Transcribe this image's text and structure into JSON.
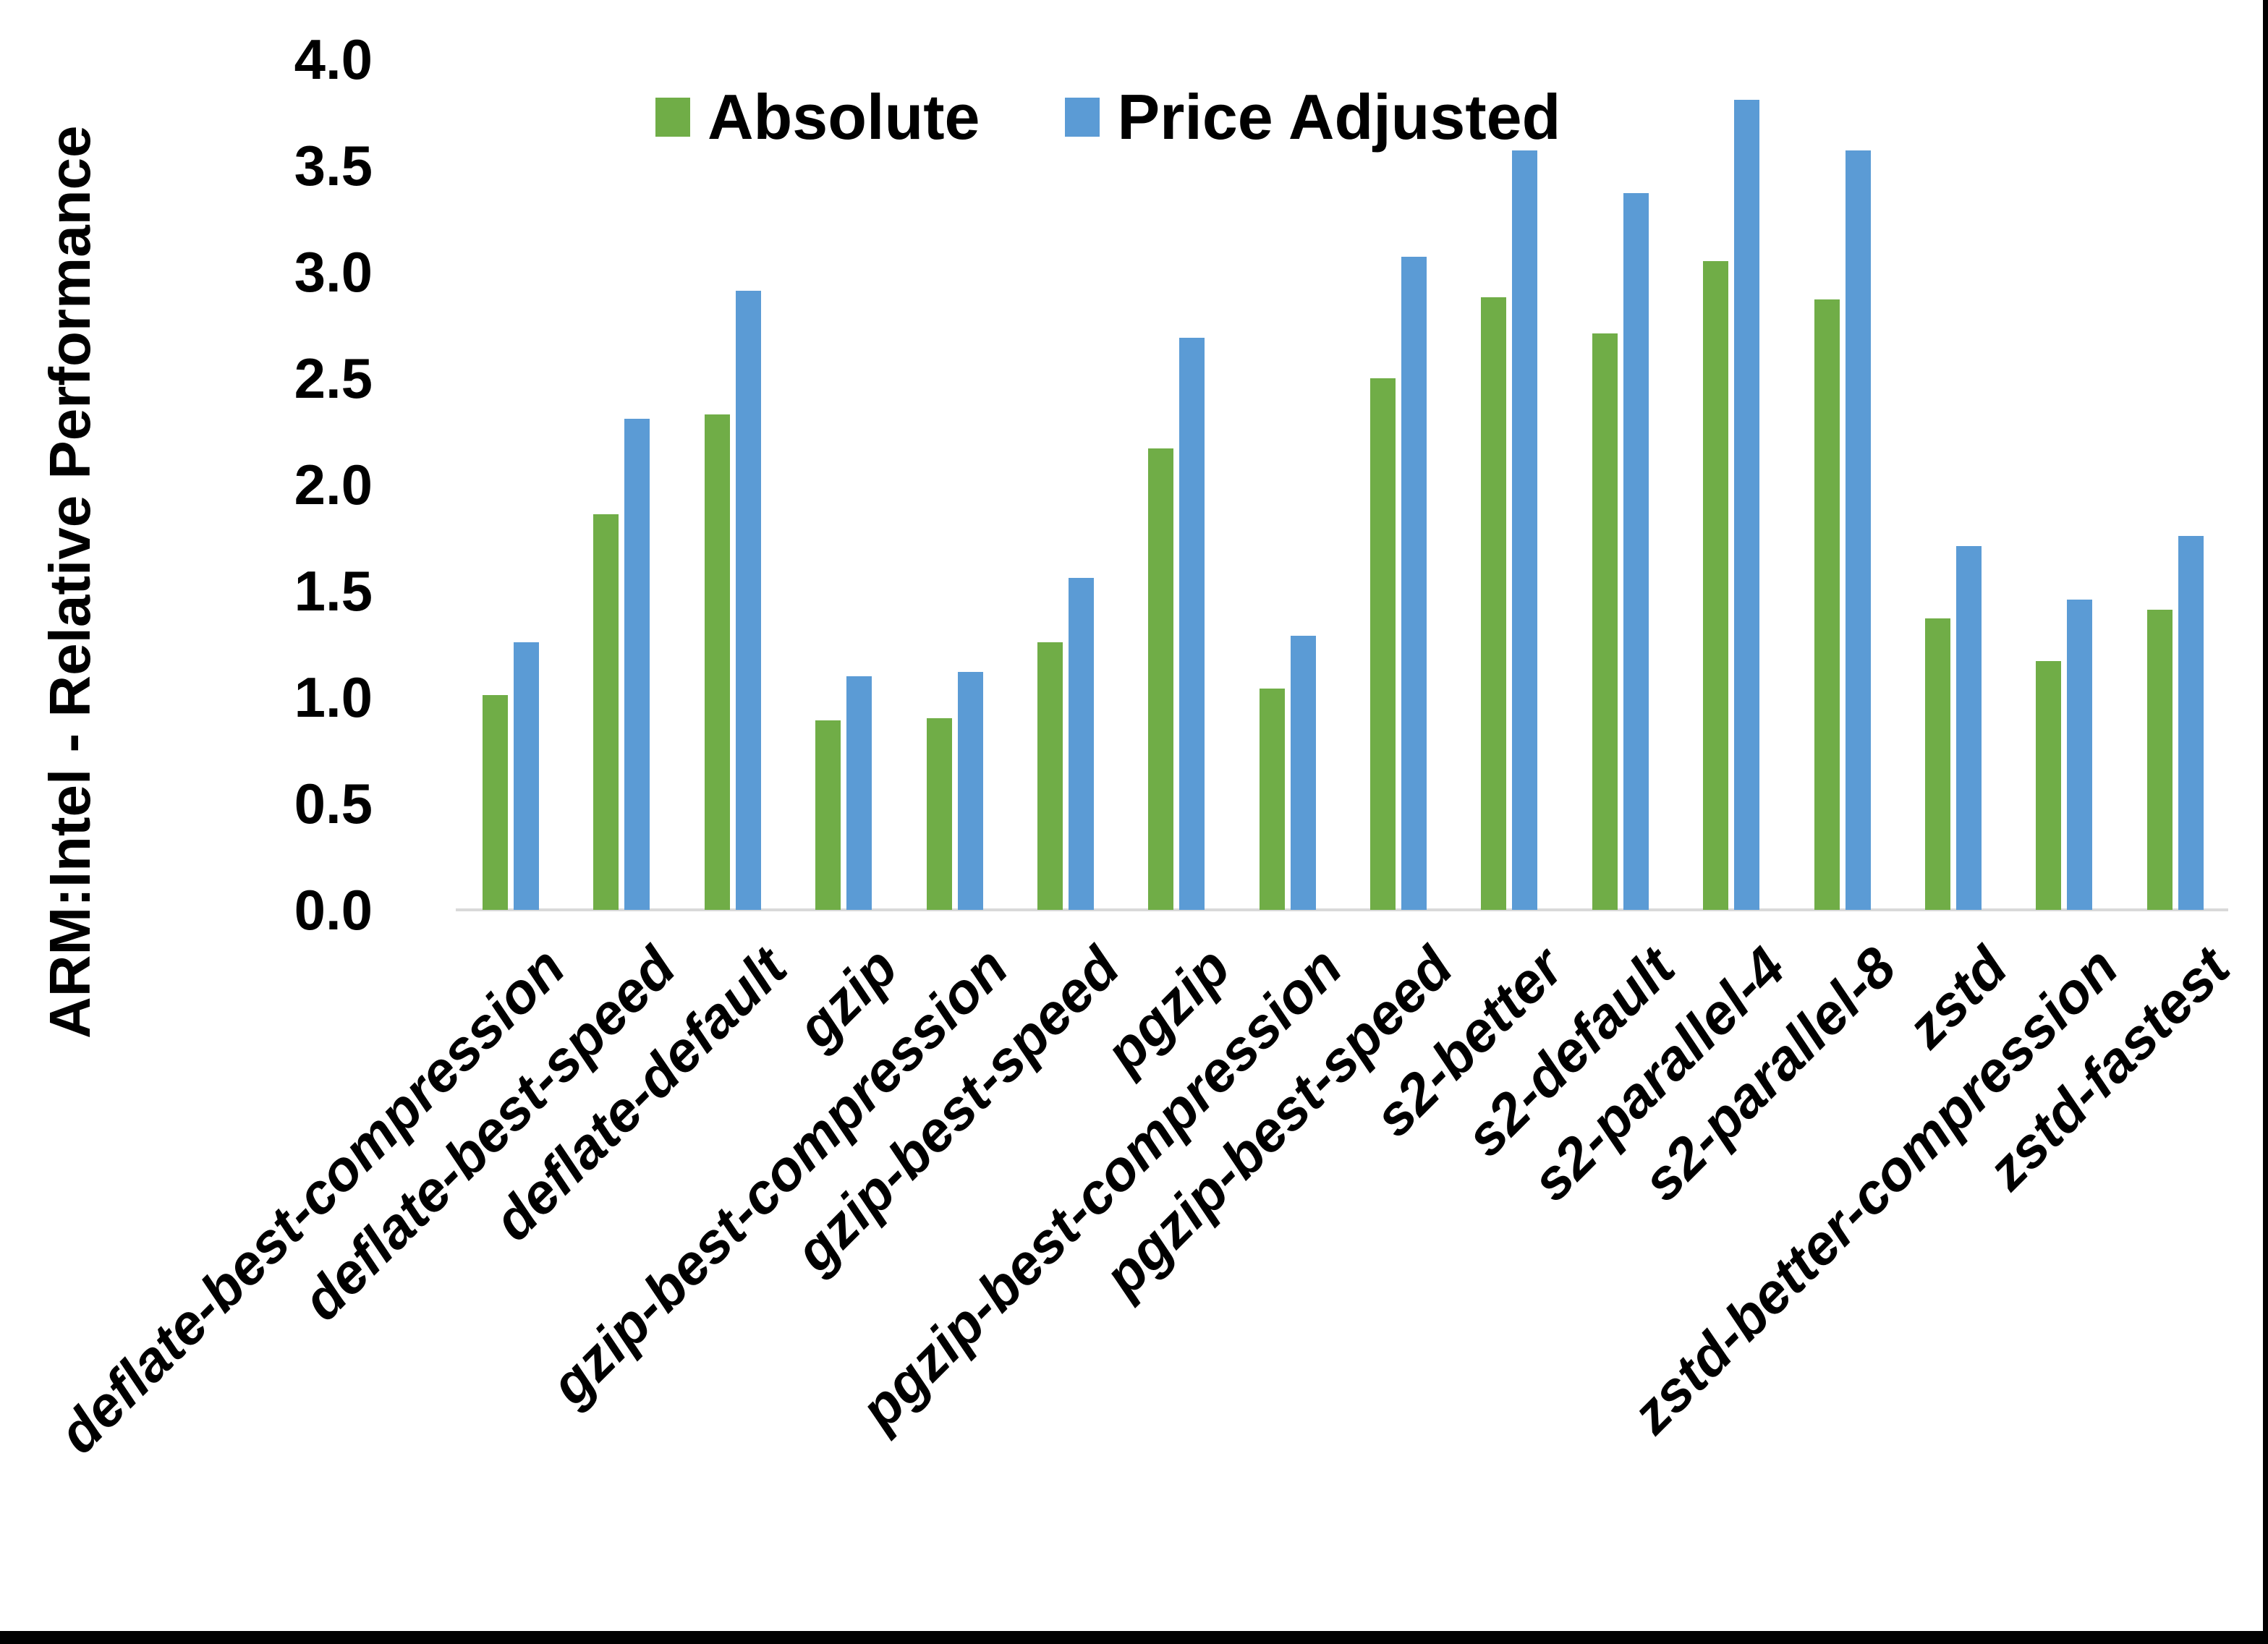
{
  "page": {
    "background": "#ffffff",
    "border_color": "#000000"
  },
  "chart_data": {
    "type": "bar",
    "title": "",
    "categories": [
      "deflate-best-compression",
      "deflate-best-speed",
      "deflate-default",
      "gzip",
      "gzip-best-compression",
      "gzip-best-speed",
      "pgzip",
      "pgzip-best-compression",
      "pgzip-best-speed",
      "s2-better",
      "s2-default",
      "s2-parallel-4",
      "s2-parallel-8",
      "zstd",
      "zstd-better-compression",
      "zstd-fastest"
    ],
    "series": [
      {
        "name": "Absolute",
        "color": "#70AD47",
        "values": [
          1.01,
          1.86,
          2.33,
          0.89,
          0.9,
          1.26,
          2.17,
          1.04,
          2.5,
          2.88,
          2.71,
          3.05,
          2.87,
          1.37,
          1.17,
          1.41
        ]
      },
      {
        "name": "Price Adjusted",
        "color": "#5B9BD5",
        "values": [
          1.26,
          2.31,
          2.91,
          1.1,
          1.12,
          1.56,
          2.69,
          1.29,
          3.07,
          3.57,
          3.37,
          3.81,
          3.57,
          1.71,
          1.46,
          1.76
        ]
      }
    ],
    "xlabel": "",
    "ylabel": "ARM:Intel - Relative Performance",
    "ylim": [
      0.0,
      4.0
    ],
    "ytick_step": 0.5,
    "ytick_labels": [
      "0.0",
      "0.5",
      "1.0",
      "1.5",
      "2.0",
      "2.5",
      "3.0",
      "3.5",
      "4.0"
    ],
    "grid": false,
    "legend_position": "top-center",
    "axis_line_color": "#D9D9D9",
    "text_color": "#000000"
  }
}
